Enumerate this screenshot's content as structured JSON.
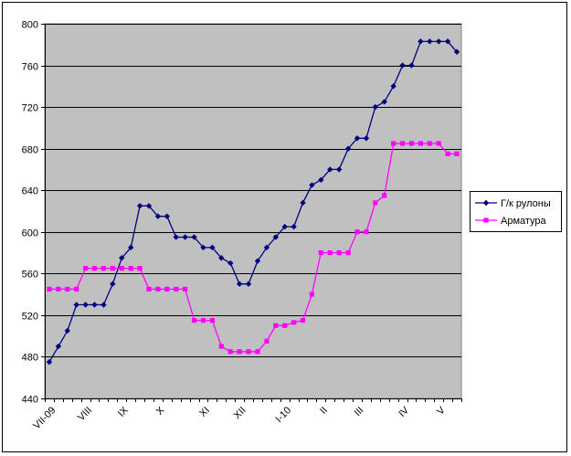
{
  "chart_data": {
    "type": "line",
    "title": "",
    "xlabel": "",
    "ylabel": "",
    "ylim": [
      440,
      800
    ],
    "ytick_step": 40,
    "grid": true,
    "plot_background": "#c0c0c0",
    "legend_position": "right",
    "x_count": 46,
    "x_tick_labels": [
      {
        "index": 0,
        "label": "VII-09"
      },
      {
        "index": 4,
        "label": "VIII"
      },
      {
        "index": 8,
        "label": "IX"
      },
      {
        "index": 12,
        "label": "X"
      },
      {
        "index": 17,
        "label": "XI"
      },
      {
        "index": 21,
        "label": "XII"
      },
      {
        "index": 26,
        "label": "I-10"
      },
      {
        "index": 30,
        "label": "II"
      },
      {
        "index": 34,
        "label": "III"
      },
      {
        "index": 39,
        "label": "IV"
      },
      {
        "index": 43,
        "label": "V"
      }
    ],
    "series": [
      {
        "name": "Г/к рулоны",
        "color": "#000080",
        "marker": "diamond",
        "values": [
          475,
          490,
          505,
          530,
          530,
          530,
          530,
          550,
          575,
          585,
          625,
          625,
          615,
          615,
          595,
          595,
          595,
          585,
          585,
          575,
          570,
          550,
          550,
          572,
          585,
          595,
          605,
          605,
          628,
          645,
          650,
          660,
          660,
          680,
          690,
          690,
          720,
          725,
          740,
          760,
          760,
          783,
          783,
          783,
          783,
          773
        ]
      },
      {
        "name": "Арматура",
        "color": "#ff00ff",
        "marker": "square",
        "values": [
          545,
          545,
          545,
          545,
          565,
          565,
          565,
          565,
          565,
          565,
          565,
          545,
          545,
          545,
          545,
          545,
          515,
          515,
          515,
          490,
          485,
          485,
          485,
          485,
          495,
          510,
          510,
          513,
          515,
          540,
          580,
          580,
          580,
          580,
          600,
          600,
          628,
          635,
          685,
          685,
          685,
          685,
          685,
          685,
          675,
          675
        ]
      }
    ]
  }
}
